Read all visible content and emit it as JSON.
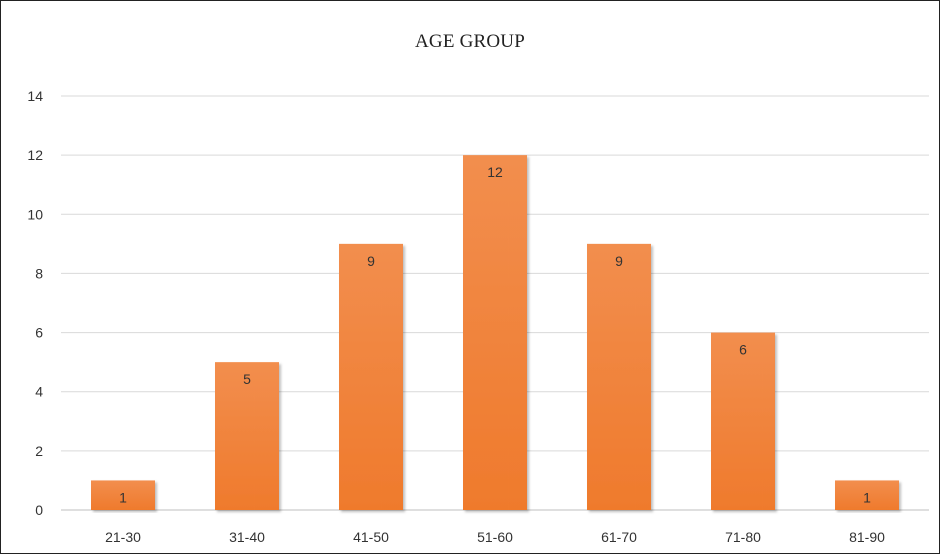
{
  "chart_data": {
    "type": "bar",
    "title": "AGE GROUP",
    "xlabel": "",
    "ylabel": "",
    "categories": [
      "21-30",
      "31-40",
      "41-50",
      "51-60",
      "61-70",
      "71-80",
      "81-90"
    ],
    "values": [
      1,
      5,
      9,
      12,
      9,
      6,
      1
    ],
    "ylim": [
      0,
      14
    ],
    "yticks": [
      0,
      2,
      4,
      6,
      8,
      10,
      12,
      14
    ],
    "grid": true,
    "data_labels": true,
    "legend": "none",
    "colors": {
      "bar": "#ef7d32",
      "bar_light": "#f28e4e",
      "grid": "#d9d9d9",
      "axis": "#bfbfbf"
    }
  }
}
